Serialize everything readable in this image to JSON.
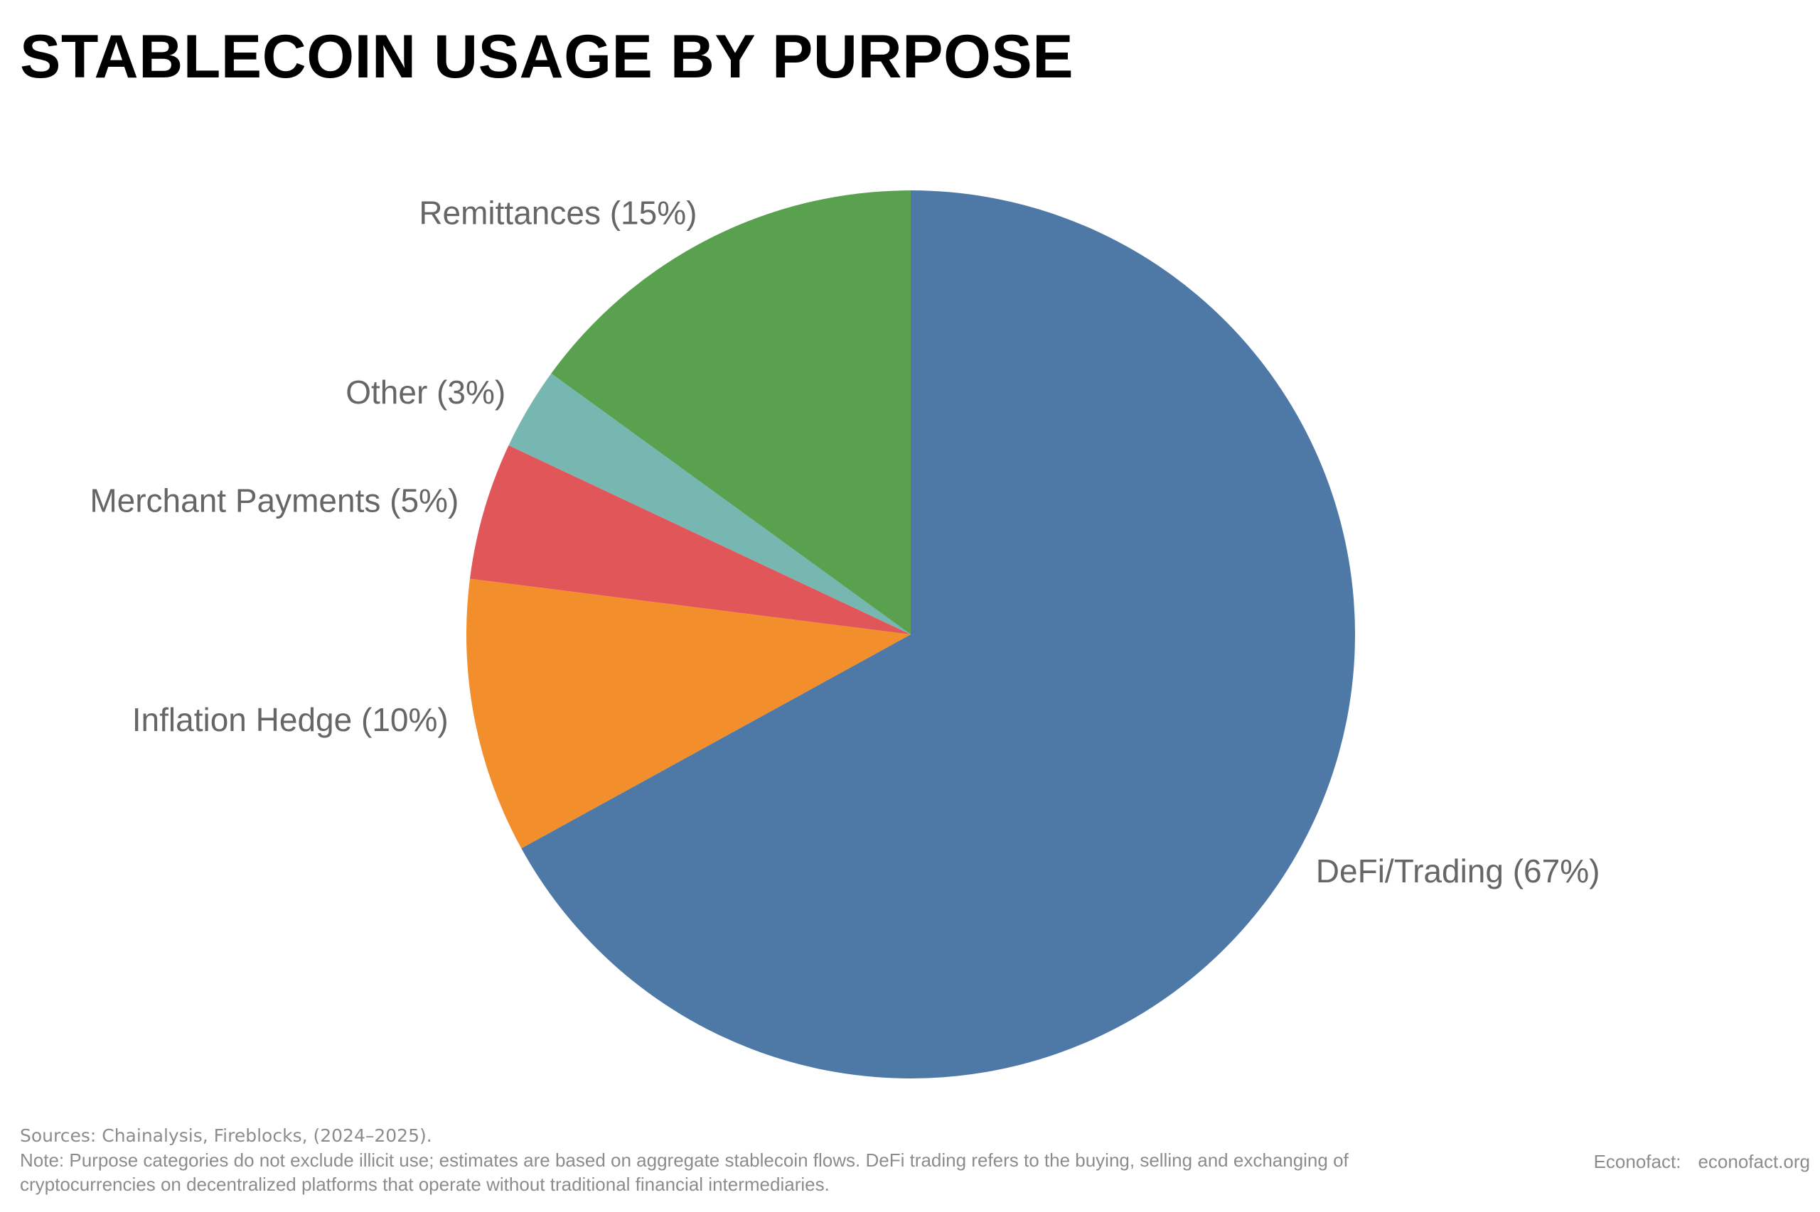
{
  "chart_data": {
    "type": "pie",
    "title": "STABLECOIN USAGE BY PURPOSE",
    "start_angle": "12 o'clock",
    "direction": "clockwise",
    "slices": [
      {
        "label": "DeFi/Trading (67%)",
        "value": 67,
        "color": "#4e79a7"
      },
      {
        "label": "Inflation Hedge (10%)",
        "value": 10,
        "color": "#f28e2b"
      },
      {
        "label": "Merchant Payments (5%)",
        "value": 5,
        "color": "#e15759"
      },
      {
        "label": "Other (3%)",
        "value": 3,
        "color": "#76b7b2"
      },
      {
        "label": "Remittances (15%)",
        "value": 15,
        "color": "#59a14f"
      }
    ]
  },
  "footer": {
    "sources": "Sources: Chainalysis, Fireblocks, (2024–2025).",
    "note": "Note: Purpose categories do not exclude illicit use; estimates are based on aggregate stablecoin flows. DeFi trading refers to the buying, selling and exchanging of cryptocurrencies on decentralized platforms that operate without traditional financial intermediaries.",
    "publisher": "Econofact:",
    "website": "econofact.org"
  }
}
